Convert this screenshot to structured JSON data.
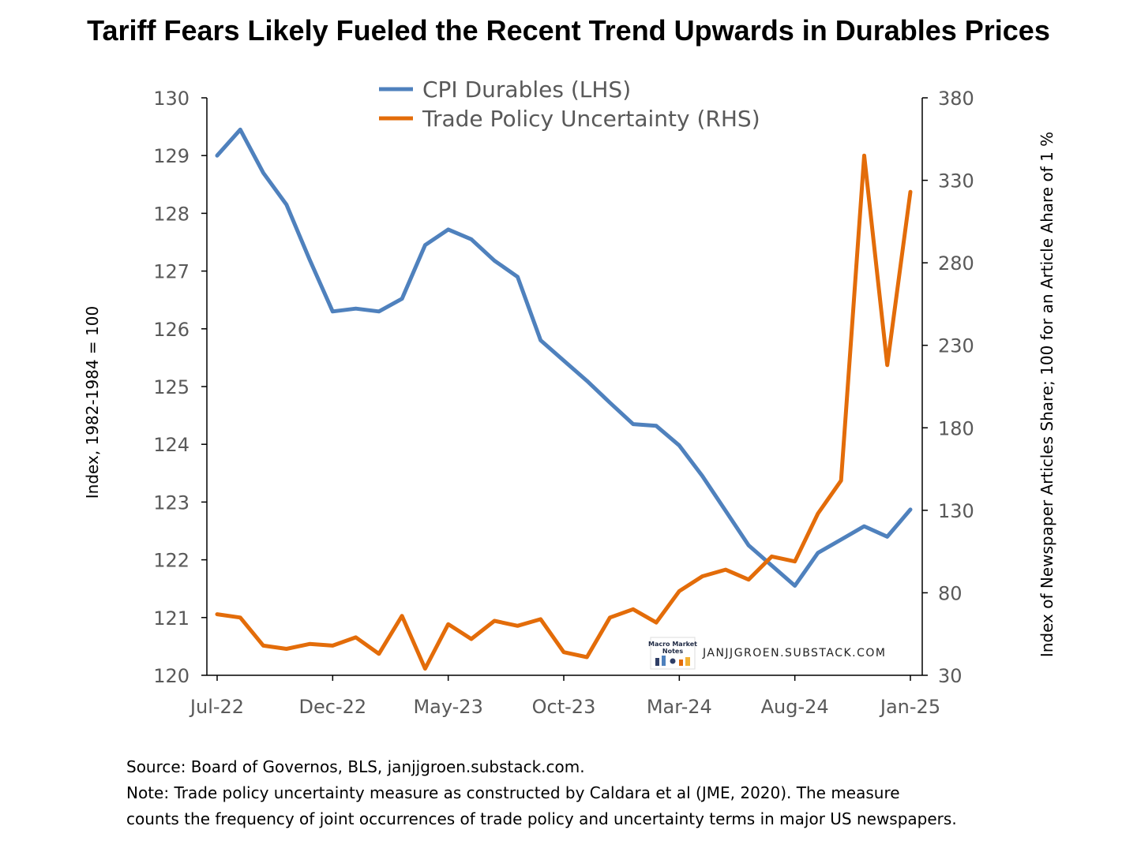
{
  "title": "Tariff Fears Likely Fueled the Recent Trend Upwards in Durables Prices",
  "notes": {
    "source": "Source: Board of Governos, BLS, janjjgroen.substack.com.",
    "note_line1": "Note: Trade policy uncertainty measure as constructed by Caldara et al (JME, 2020). The measure",
    "note_line2": "counts the frequency of joint occurrences of trade policy and uncertainty terms in major US newspapers."
  },
  "watermark": {
    "text": "JANJJGROEN.SUBSTACK.COM",
    "logo_text": "Macro Market Notes",
    "logo_icon": "macro-market-notes-logo"
  },
  "chart_data": {
    "type": "line",
    "x": [
      "Jul-22",
      "Aug-22",
      "Sep-22",
      "Oct-22",
      "Nov-22",
      "Dec-22",
      "Jan-23",
      "Feb-23",
      "Mar-23",
      "Apr-23",
      "May-23",
      "Jun-23",
      "Jul-23",
      "Aug-23",
      "Sep-23",
      "Oct-23",
      "Nov-23",
      "Dec-23",
      "Jan-24",
      "Feb-24",
      "Mar-24",
      "Apr-24",
      "May-24",
      "Jun-24",
      "Jul-24",
      "Aug-24",
      "Sep-24",
      "Oct-24",
      "Nov-24",
      "Dec-24",
      "Jan-25"
    ],
    "x_tick_labels": [
      "Jul-22",
      "Dec-22",
      "May-23",
      "Oct-23",
      "Mar-24",
      "Aug-24",
      "Jan-25"
    ],
    "series": [
      {
        "name": "CPI Durables (LHS)",
        "axis": "left",
        "color": "#4F81BD",
        "values": [
          129.0,
          129.45,
          128.7,
          128.15,
          127.2,
          126.3,
          126.35,
          126.3,
          126.52,
          127.45,
          127.72,
          127.55,
          127.18,
          126.9,
          125.8,
          125.45,
          125.1,
          124.72,
          124.35,
          124.32,
          123.98,
          123.45,
          122.85,
          122.25,
          121.9,
          121.55,
          122.12,
          122.35,
          122.58,
          122.4,
          122.87
        ]
      },
      {
        "name": "Trade Policy Uncertainty (RHS)",
        "axis": "right",
        "color": "#E36C09",
        "values": [
          67,
          65,
          48,
          46,
          49,
          48,
          53,
          43,
          66,
          34,
          61,
          52,
          63,
          60,
          64,
          44,
          41,
          65,
          70,
          62,
          81,
          90,
          94,
          88,
          102,
          99,
          128,
          148,
          345,
          218,
          323
        ]
      }
    ],
    "left_axis": {
      "label": "Index, 1982-1984 = 100",
      "ylim": [
        120,
        130
      ],
      "ticks": [
        120,
        121,
        122,
        123,
        124,
        125,
        126,
        127,
        128,
        129,
        130
      ]
    },
    "right_axis": {
      "label": "Index of Newspaper Articles Share; 100 for an Article Ahare of 1 %",
      "ylim": [
        30,
        380
      ],
      "ticks": [
        30,
        80,
        130,
        180,
        230,
        280,
        330,
        380
      ]
    },
    "legend_position": "top-center",
    "grid": false
  }
}
